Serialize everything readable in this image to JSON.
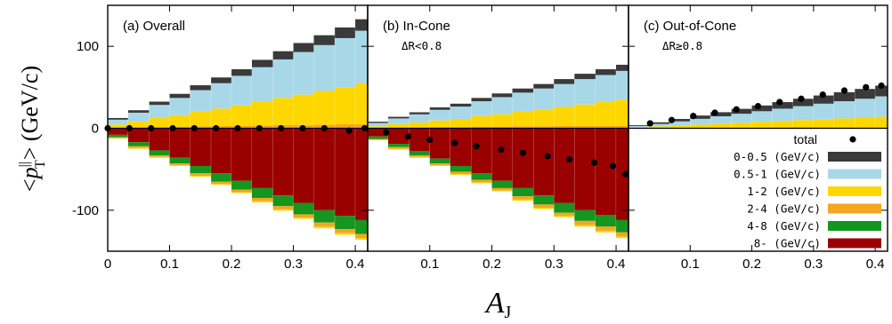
{
  "chart_data": {
    "type": "bar",
    "stacked": true,
    "x_label_main": "A",
    "x_label_sub": "J",
    "y_label_left": "<",
    "y_label_p": "p",
    "y_label_sup": "||",
    "y_label_sub": "T",
    "y_label_right": "> (GeV/c)",
    "ylim": [
      -150,
      150
    ],
    "yticks": [
      100,
      0,
      -100
    ],
    "xlim": [
      0,
      0.42
    ],
    "xticks": [
      0,
      0.1,
      0.2,
      0.3,
      0.4
    ],
    "xtick_labels_panel1": [
      "0",
      "0.1",
      "0.2",
      "0.3",
      "0.4"
    ],
    "xtick_labels_other": [
      "0.1",
      "0.2",
      "0.3",
      "0.4"
    ],
    "ytick_labels": [
      "100",
      "0",
      "-100"
    ],
    "x_bins": [
      0.0,
      0.033,
      0.067,
      0.1,
      0.133,
      0.167,
      0.2,
      0.233,
      0.267,
      0.3,
      0.333,
      0.367,
      0.4,
      0.42
    ],
    "series_names": [
      "0-0.5 (GeV/c)",
      "0.5-1 (GeV/c)",
      "1-2 (GeV/c)",
      "2-4 (GeV/c)",
      "4-8 (GeV/c)",
      "8- (GeV/c)"
    ],
    "series_colors": [
      "#3a3a3a",
      "#a8d8e8",
      "#ffd700",
      "#f5a623",
      "#15961e",
      "#9b0000"
    ],
    "total_label": "total",
    "panels": [
      {
        "title": "(a) Overall",
        "note": "",
        "positive": {
          "0-0.5": [
            2,
            3,
            4,
            5,
            6,
            7,
            8,
            9,
            10,
            11,
            12,
            13,
            14
          ],
          "0.5-1": [
            6,
            11,
            16,
            21,
            26,
            31,
            36,
            42,
            47,
            52,
            56,
            60,
            64
          ],
          "1-2": [
            4,
            7,
            11,
            14,
            18,
            21,
            25,
            29,
            33,
            37,
            41,
            45,
            50
          ],
          "2-4": [
            0.5,
            1,
            1.5,
            2,
            2.5,
            3,
            3,
            3.5,
            4,
            4,
            4.5,
            5,
            5
          ]
        },
        "negative": {
          "8-": [
            -8,
            -17,
            -27,
            -36,
            -46,
            -55,
            -64,
            -73,
            -82,
            -91,
            -100,
            -107,
            -112
          ],
          "4-8": [
            -3,
            -5,
            -6,
            -7,
            -9,
            -10,
            -11,
            -12,
            -13,
            -14,
            -15,
            -16,
            -17
          ],
          "2-4": [
            -1,
            -2,
            -2,
            -2,
            -3,
            -3,
            -3,
            -4,
            -4,
            -4,
            -5,
            -5,
            -5
          ],
          "1-2": [
            -0.5,
            -1,
            -1,
            -1,
            -1,
            -1,
            -1,
            -1.5,
            -1.5,
            -1.5,
            -2,
            -2,
            -2
          ]
        },
        "total": {
          "x": [
            0.0,
            0.035,
            0.07,
            0.105,
            0.14,
            0.175,
            0.21,
            0.245,
            0.28,
            0.315,
            0.35,
            0.39,
            0.415
          ],
          "y": [
            0,
            0,
            0,
            0,
            0,
            0,
            0,
            0,
            0,
            0,
            0,
            -3,
            0
          ]
        }
      },
      {
        "title": "(b) In-Cone",
        "note": "ΔR<0.8",
        "positive": {
          "0-0.5": [
            1.5,
            2,
            2.5,
            3,
            3.5,
            4,
            4.5,
            5,
            5.5,
            6,
            6.5,
            7,
            7.5
          ],
          "0.5-1": [
            4,
            7,
            10,
            13,
            15,
            18,
            21,
            23,
            26,
            28,
            31,
            33,
            35
          ],
          "1-2": [
            2,
            4,
            6,
            8,
            10,
            13,
            15,
            18,
            20,
            23,
            26,
            29,
            32
          ],
          "2-4": [
            0.5,
            1,
            1,
            1.5,
            1.5,
            2,
            2,
            2.5,
            2.5,
            3,
            3,
            3,
            3
          ]
        },
        "negative": {
          "8-": [
            -10,
            -19,
            -28,
            -37,
            -46,
            -55,
            -64,
            -73,
            -82,
            -91,
            -100,
            -106,
            -112
          ],
          "4-8": [
            -3,
            -4,
            -5,
            -6,
            -7,
            -8,
            -9,
            -10,
            -11,
            -12,
            -13,
            -14,
            -15
          ],
          "2-4": [
            -1,
            -2,
            -2,
            -2,
            -3,
            -3,
            -3,
            -4,
            -4,
            -4,
            -5,
            -5,
            -5
          ],
          "1-2": [
            -0.5,
            -1,
            -1,
            -1,
            -1,
            -1,
            -1,
            -1.5,
            -1.5,
            -1.5,
            -2,
            -2,
            -2
          ]
        },
        "total": {
          "x": [
            0.03,
            0.065,
            0.1,
            0.14,
            0.175,
            0.215,
            0.25,
            0.29,
            0.325,
            0.365,
            0.395,
            0.415
          ],
          "y": [
            -5,
            -10,
            -14,
            -18,
            -22,
            -26,
            -30,
            -34,
            -38,
            -42,
            -46,
            -56
          ]
        }
      },
      {
        "title": "(c) Out-of-Cone",
        "note": "ΔR≥0.8",
        "positive": {
          "0-0.5": [
            1,
            2,
            3,
            4,
            5,
            6,
            7,
            8,
            9,
            10,
            11,
            12,
            13
          ],
          "0.5-1": [
            1.5,
            3,
            5,
            7,
            9,
            11,
            13,
            15,
            17,
            19,
            21,
            23,
            25
          ],
          "1-2": [
            1,
            2,
            3,
            4,
            5,
            6,
            7,
            8,
            9,
            10,
            11,
            12,
            13
          ],
          "2-4": [
            0.2,
            0.3,
            0.4,
            0.5,
            0.6,
            0.7,
            0.8,
            0.9,
            1,
            1,
            1,
            1,
            1
          ]
        },
        "negative": {
          "8-": [
            -0.5,
            -0.5,
            -0.5,
            -0.5,
            -0.5,
            -0.5,
            -0.5,
            -0.5,
            -0.5,
            -0.5,
            -0.5,
            -0.5,
            -0.5
          ]
        },
        "total": {
          "x": [
            0.035,
            0.07,
            0.105,
            0.14,
            0.175,
            0.21,
            0.245,
            0.28,
            0.315,
            0.35,
            0.385,
            0.41
          ],
          "y": [
            6,
            10,
            15,
            19,
            23,
            27,
            32,
            36,
            41,
            46,
            50,
            52
          ]
        }
      }
    ],
    "legend_position": "right, lower part of panel (c)",
    "grid": false
  }
}
